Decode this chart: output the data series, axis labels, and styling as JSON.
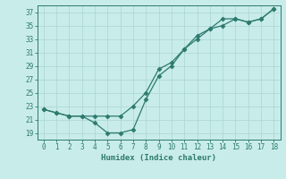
{
  "x": [
    0,
    1,
    2,
    3,
    4,
    5,
    6,
    7,
    8,
    9,
    10,
    11,
    12,
    13,
    14,
    15,
    16,
    17,
    18
  ],
  "line1": [
    22.5,
    22.0,
    21.5,
    21.5,
    21.5,
    21.5,
    21.5,
    23.0,
    25.0,
    28.5,
    29.5,
    31.5,
    33.5,
    34.5,
    36.0,
    36.0,
    35.5,
    36.0,
    37.5
  ],
  "line2": [
    22.5,
    22.0,
    21.5,
    21.5,
    20.5,
    19.0,
    19.0,
    19.5,
    24.0,
    27.5,
    29.0,
    31.5,
    33.0,
    34.5,
    35.0,
    36.0,
    35.5,
    36.0,
    37.5
  ],
  "color": "#2d7a6e",
  "bg_color": "#c8ecea",
  "grid_color": "#afd8d4",
  "xlabel": "Humidex (Indice chaleur)",
  "ylim": [
    18,
    38
  ],
  "yticks": [
    19,
    21,
    23,
    25,
    27,
    29,
    31,
    33,
    35,
    37
  ],
  "xlim": [
    -0.5,
    18.5
  ],
  "xticks": [
    0,
    1,
    2,
    3,
    4,
    5,
    6,
    7,
    8,
    9,
    10,
    11,
    12,
    13,
    14,
    15,
    16,
    17,
    18
  ]
}
